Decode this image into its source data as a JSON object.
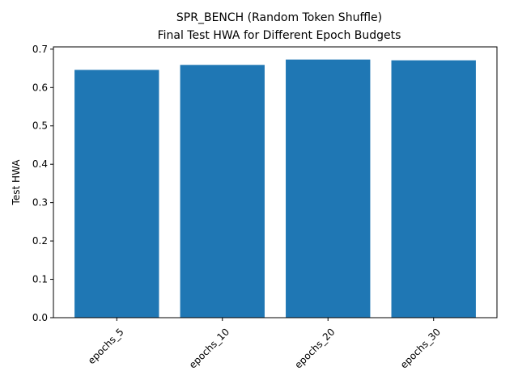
{
  "chart_data": {
    "type": "bar",
    "title_line1": "SPR_BENCH (Random Token Shuffle)",
    "title_line2": "Final Test HWA for Different Epoch Budgets",
    "xlabel": "",
    "ylabel": "Test HWA",
    "categories": [
      "epochs_5",
      "epochs_10",
      "epochs_20",
      "epochs_30"
    ],
    "values": [
      0.646,
      0.659,
      0.673,
      0.671
    ],
    "ylim": [
      0,
      0.706
    ],
    "yticks": [
      0.0,
      0.1,
      0.2,
      0.3,
      0.4,
      0.5,
      0.6,
      0.7
    ],
    "ytick_labels": [
      "0.0",
      "0.1",
      "0.2",
      "0.3",
      "0.4",
      "0.5",
      "0.6",
      "0.7"
    ],
    "grid": false,
    "bar_color": "#1f77b4"
  }
}
